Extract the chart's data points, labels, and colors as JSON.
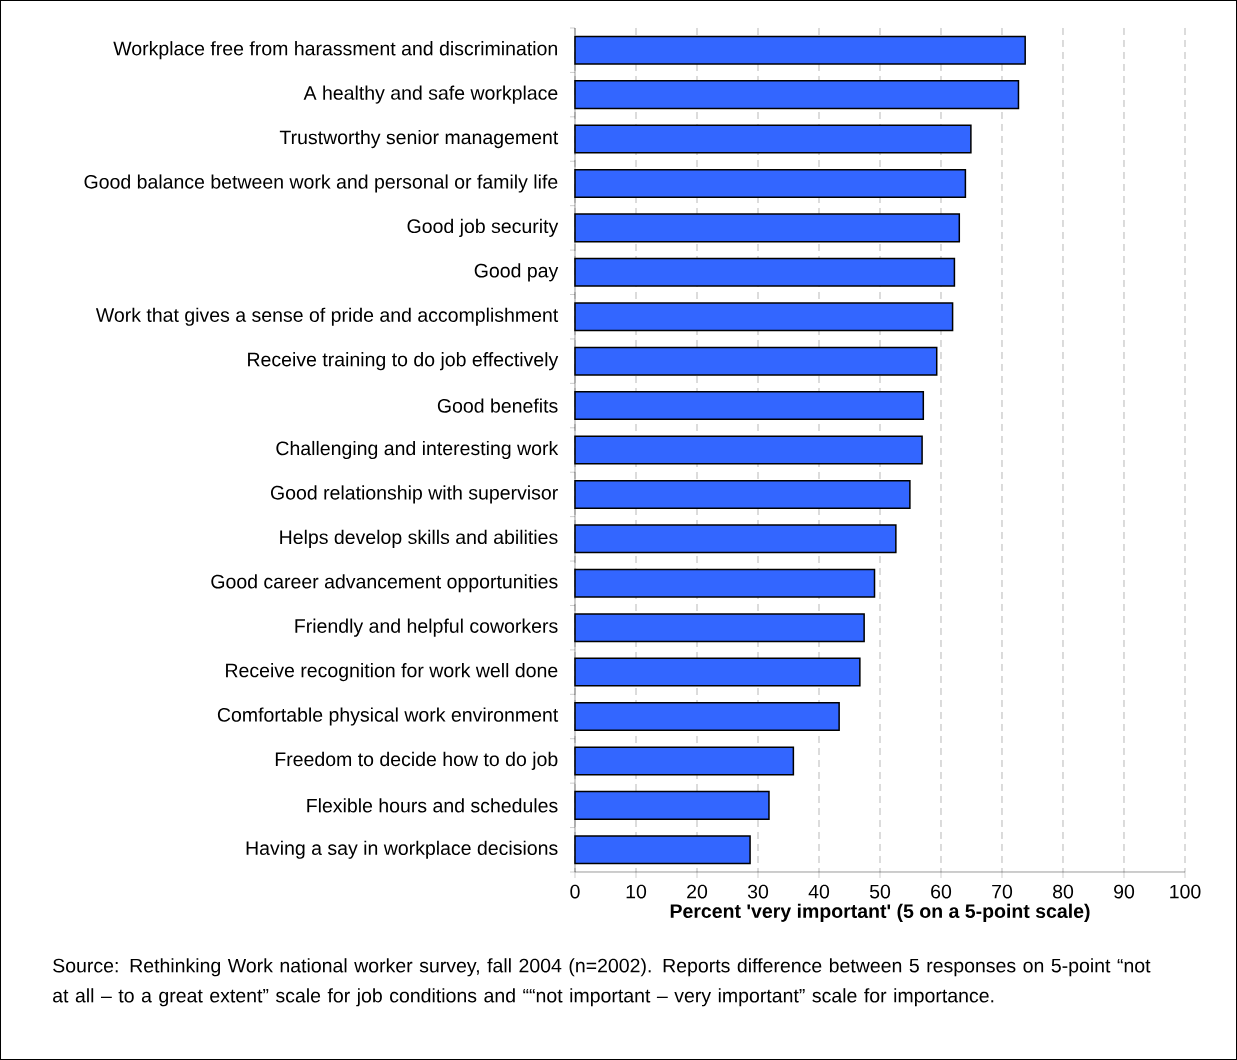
{
  "chart_data": {
    "type": "bar",
    "orientation": "horizontal",
    "categories": [
      "Workplace free from harassment and discrimination",
      "A healthy and safe workplace",
      "Trustworthy senior management",
      "Good balance between work and personal or family life",
      "Good job security",
      "Good pay",
      "Work that gives a sense of pride and accomplishment",
      "Receive training to do job effectively",
      "Good benefits",
      "Challenging and interesting work",
      "Good relationship with supervisor",
      "Helps develop skills and abilities",
      "Good career advancement opportunities",
      "Friendly and helpful coworkers",
      "Receive recognition for work well done",
      "Comfortable physical work environment",
      "Freedom to decide how to do job",
      "Flexible hours and schedules",
      "Having a say in workplace decisions"
    ],
    "values": [
      73.8,
      72.7,
      64.9,
      64,
      63,
      62.2,
      61.9,
      59.3,
      57.1,
      56.9,
      54.9,
      52.6,
      49.1,
      47.4,
      46.7,
      43.3,
      35.8,
      31.8,
      28.7
    ],
    "color": "#3366ff",
    "xlim": [
      0,
      100
    ],
    "xticks": [
      0,
      10,
      20,
      30,
      40,
      50,
      60,
      70,
      80,
      90,
      100
    ],
    "xlabel": "Percent 'very important' (5 on a 5-point scale)",
    "grid": "x",
    "annotations": [
      "Source: Rethinking Work national worker survey, fall 2004 (n=2002). Reports difference between 5 responses on 5-point “not at all – to a great extent” scale for job conditions and ““not important – very important” scale for importance."
    ]
  }
}
